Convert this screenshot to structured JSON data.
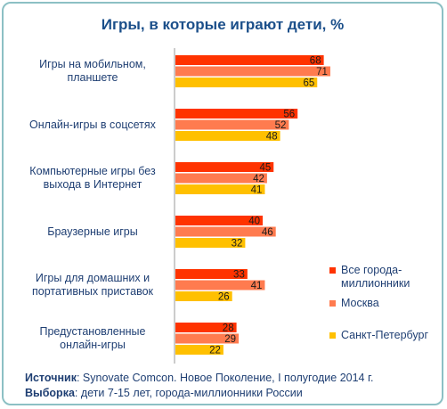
{
  "chart_data": {
    "type": "bar",
    "orientation": "horizontal",
    "title": "Игры, в которые играют дети, %",
    "categories": [
      [
        "Игры на мобильном,",
        "планшете"
      ],
      [
        "Онлайн-игры в соцсетях"
      ],
      [
        "Компьютерные игры без",
        "выхода в Интернет"
      ],
      [
        "Браузерные игры"
      ],
      [
        "Игры для домашних и",
        "портативных приставок"
      ],
      [
        "Предустановленные",
        "онлайн-игры"
      ]
    ],
    "series": [
      {
        "name": "Все города-миллионники",
        "name_lines": [
          "Все города-",
          "миллионники"
        ],
        "color": "#ff3300",
        "values": [
          68,
          56,
          45,
          40,
          33,
          28
        ]
      },
      {
        "name": "Москва",
        "name_lines": [
          "Москва"
        ],
        "color": "#ff7b4f",
        "values": [
          71,
          52,
          42,
          46,
          41,
          29
        ]
      },
      {
        "name": "Санкт-Петербург",
        "name_lines": [
          "Санкт-Петербург"
        ],
        "color": "#ffc000",
        "values": [
          65,
          48,
          41,
          32,
          26,
          22
        ]
      }
    ],
    "xlim": [
      0,
      100
    ],
    "grid": false,
    "legend": "right"
  },
  "footer": {
    "source_label": "Источник",
    "source_text": ": Synovate Comcon. Новое Поколение, I полугодие 2014 г.",
    "sample_label": "Выборка",
    "sample_text": ": дети 7-15 лет, города-миллионники России"
  }
}
